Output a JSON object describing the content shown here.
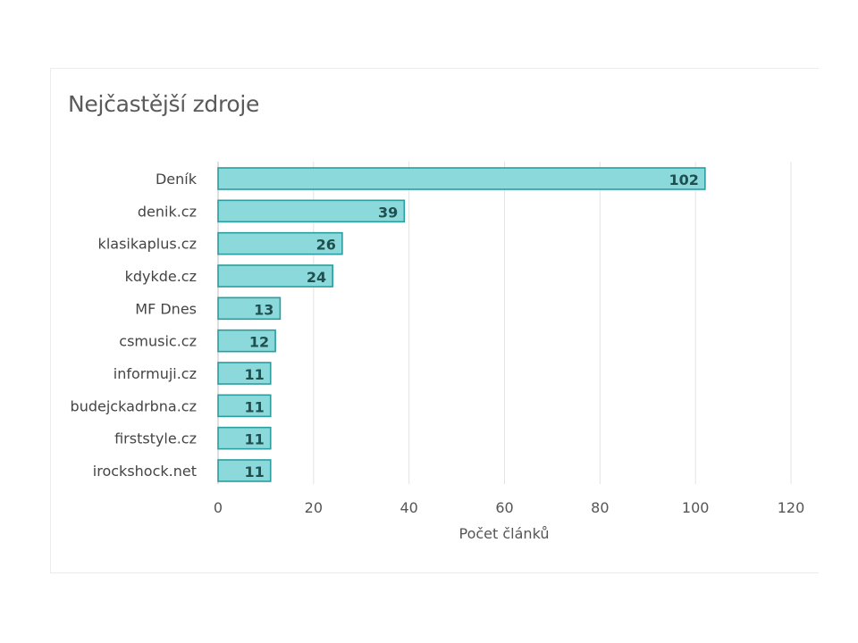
{
  "chart_data": {
    "type": "bar",
    "orientation": "horizontal",
    "title": "Nejčastější zdroje",
    "xlabel": "Počet článků",
    "ylabel": "",
    "categories": [
      "Deník",
      "denik.cz",
      "klasikaplus.cz",
      "kdykde.cz",
      "MF Dnes",
      "csmusic.cz",
      "informuji.cz",
      "budejckadrbna.cz",
      "firststyle.cz",
      "irockshock.net"
    ],
    "values": [
      102,
      39,
      26,
      24,
      13,
      12,
      11,
      11,
      11,
      11
    ],
    "xlim": [
      0,
      120
    ],
    "xticks": [
      0,
      20,
      40,
      60,
      80,
      100,
      120
    ],
    "grid": true,
    "legend": "none",
    "bar_color": "#8cd9dc",
    "bar_border_color": "#2a9d9f",
    "value_label_color": "#1f4f4f"
  }
}
